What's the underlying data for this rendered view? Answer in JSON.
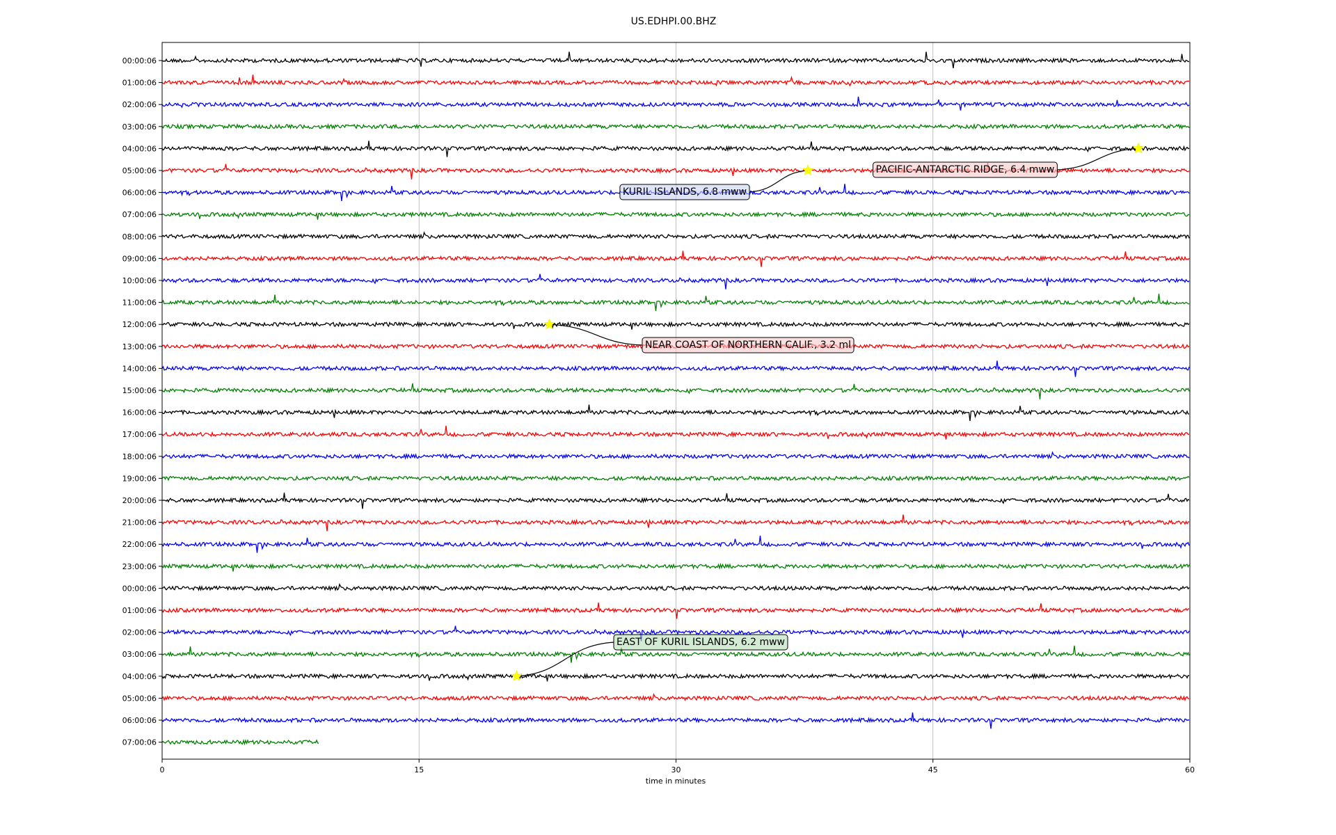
{
  "chart_data": {
    "type": "line",
    "title": "US.EDHPI.00.BHZ",
    "xlabel": "time in minutes",
    "xlim": [
      0,
      60
    ],
    "x_ticks": [
      0,
      15,
      30,
      45,
      60
    ],
    "grid": "vertical",
    "colors": [
      "#000000",
      "#ff0000",
      "#0000ff",
      "#008000"
    ],
    "row_labels": [
      "00:00:06",
      "01:00:06",
      "02:00:06",
      "03:00:06",
      "04:00:06",
      "05:00:06",
      "06:00:06",
      "07:00:06",
      "08:00:06",
      "09:00:06",
      "10:00:06",
      "11:00:06",
      "12:00:06",
      "13:00:06",
      "14:00:06",
      "15:00:06",
      "16:00:06",
      "17:00:06",
      "18:00:06",
      "19:00:06",
      "20:00:06",
      "21:00:06",
      "22:00:06",
      "23:00:06",
      "00:00:06",
      "01:00:06",
      "02:00:06",
      "03:00:06",
      "04:00:06",
      "05:00:06",
      "06:00:06",
      "07:00:06"
    ],
    "last_row_end_minute": 9.2,
    "annotations": [
      {
        "text": "KURIL ISLANDS, 6.8 mww",
        "row": 5,
        "minute": 37.7,
        "box_color": "#c9d3f2"
      },
      {
        "text": "PACIFIC-ANTARCTIC RIDGE, 6.4 mww",
        "row": 4,
        "minute": 57.0,
        "box_color": "#f7c9cb"
      },
      {
        "text": "NEAR COAST OF NORTHERN CALIF., 3.2 ml",
        "row": 12,
        "minute": 22.6,
        "box_color": "#f7c9cb"
      },
      {
        "text": "EAST OF KURIL ISLANDS, 6.2 mww",
        "row": 28,
        "minute": 20.7,
        "box_color": "#b6dcb6"
      }
    ]
  }
}
